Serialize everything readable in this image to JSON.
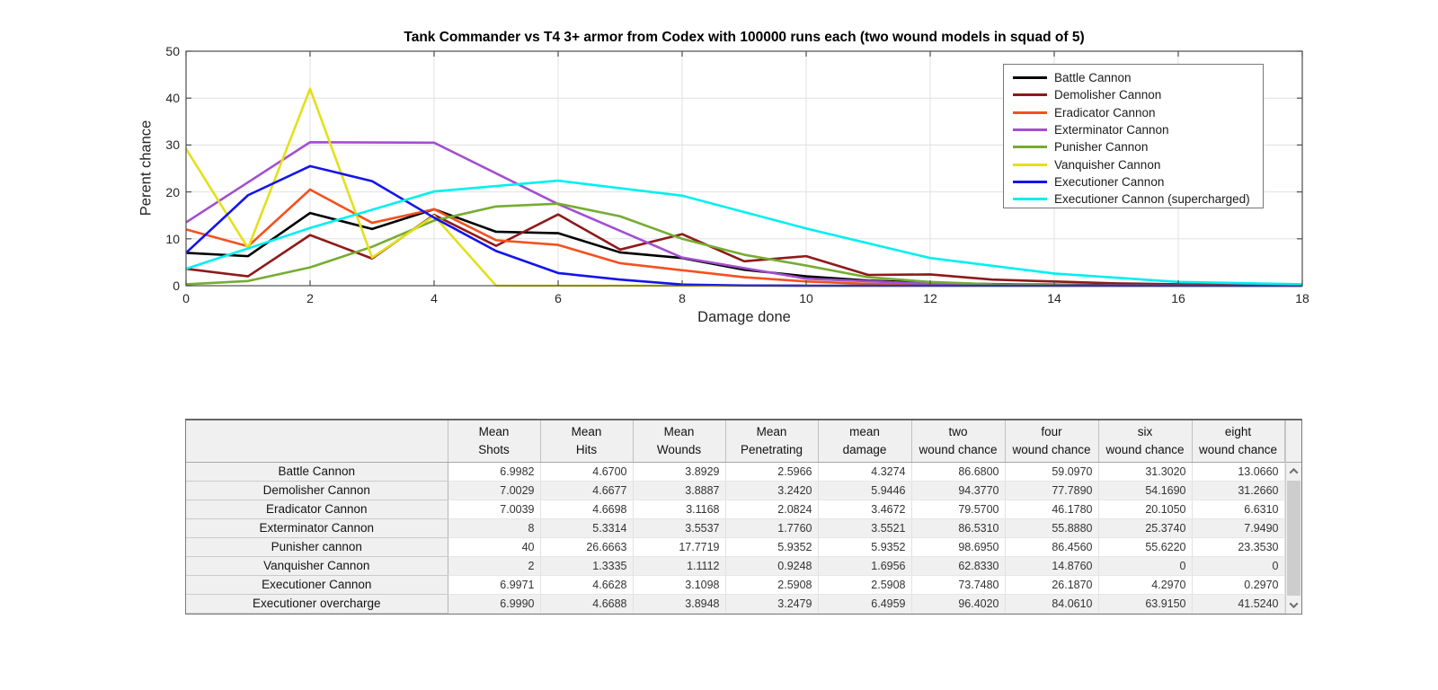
{
  "chart_data": {
    "type": "line",
    "title": "Tank Commander vs T4 3+ armor from Codex with 100000 runs each (two wound models in squad of 5)",
    "xlabel": "Damage done",
    "ylabel": "Perent chance",
    "xlim": [
      0,
      18
    ],
    "ylim": [
      0,
      50
    ],
    "xticks": [
      0,
      2,
      4,
      6,
      8,
      10,
      12,
      14,
      16,
      18
    ],
    "yticks": [
      0,
      10,
      20,
      30,
      40,
      50
    ],
    "grid": true,
    "legend_position": "upper right",
    "colors": {
      "grid": "#e0e0e0",
      "axis": "#4d4d4d",
      "tick_label": "#262626"
    },
    "series": [
      {
        "name": "Battle Cannon",
        "color": "#000000",
        "x": [
          0,
          1,
          2,
          3,
          4,
          5,
          6,
          7,
          8,
          9,
          10,
          11,
          12,
          13,
          14,
          15,
          16,
          17,
          18
        ],
        "y": [
          7.0,
          6.3,
          15.5,
          12.1,
          16.3,
          11.5,
          11.2,
          7.1,
          5.9,
          3.4,
          2.0,
          1.1,
          0.6,
          0.35,
          0.2,
          0.1,
          0.05,
          0.02,
          0
        ]
      },
      {
        "name": "Demolisher Cannon",
        "color": "#8e1a1a",
        "x": [
          0,
          1,
          2,
          3,
          4,
          5,
          6,
          7,
          8,
          9,
          10,
          11,
          12,
          13,
          14,
          15,
          16,
          17,
          18
        ],
        "y": [
          3.6,
          2.0,
          10.8,
          5.8,
          15.1,
          8.5,
          15.2,
          7.7,
          11.0,
          5.2,
          6.3,
          2.3,
          2.4,
          1.3,
          0.9,
          0.5,
          0.3,
          0.15,
          0.1
        ]
      },
      {
        "name": "Eradicator Cannon",
        "color": "#f4511e",
        "x": [
          0,
          1,
          2,
          3,
          4,
          5,
          6,
          7,
          8,
          9,
          10,
          11,
          12,
          13,
          14,
          15,
          16,
          17,
          18
        ],
        "y": [
          12.0,
          8.4,
          20.5,
          13.4,
          16.3,
          9.7,
          8.7,
          4.8,
          3.3,
          1.8,
          0.9,
          0.4,
          0.15,
          0.05,
          0,
          0,
          0,
          0,
          0
        ]
      },
      {
        "name": "Exterminator Cannon",
        "color": "#a24fd0",
        "x": [
          0,
          2,
          4,
          6,
          8,
          10,
          12,
          14,
          16,
          18
        ],
        "y": [
          13.5,
          30.6,
          30.5,
          17.4,
          6.0,
          1.5,
          0.4,
          0.1,
          0,
          0
        ]
      },
      {
        "name": "Punisher Cannon",
        "color": "#76ac32",
        "x": [
          0,
          1,
          2,
          3,
          4,
          5,
          6,
          7,
          8,
          9,
          10,
          11,
          12,
          13,
          14,
          15,
          16,
          17,
          18
        ],
        "y": [
          0.3,
          1.0,
          3.9,
          8.3,
          13.9,
          16.9,
          17.5,
          14.8,
          10.0,
          6.6,
          4.3,
          1.8,
          0.8,
          0.3,
          0.1,
          0,
          0,
          0,
          0
        ]
      },
      {
        "name": "Vanquisher Cannon",
        "color": "#e3e019",
        "x": [
          0,
          1,
          2,
          3,
          4,
          5,
          6,
          7,
          8,
          9,
          10,
          11,
          12,
          13,
          14,
          15,
          16,
          17,
          18
        ],
        "y": [
          29.2,
          8.0,
          42.0,
          6.0,
          14.9,
          0,
          0,
          0,
          0,
          0,
          0,
          0,
          0,
          0,
          0,
          0,
          0,
          0,
          0
        ]
      },
      {
        "name": "Executioner Cannon",
        "color": "#1414eb",
        "x": [
          0,
          1,
          2,
          3,
          4,
          5,
          6,
          7,
          8,
          9,
          10,
          11,
          12,
          13,
          14,
          15,
          16,
          17,
          18
        ],
        "y": [
          7.0,
          19.3,
          25.5,
          22.3,
          14.5,
          7.4,
          2.7,
          1.3,
          0.25,
          0.05,
          0,
          0,
          0,
          0,
          0,
          0,
          0,
          0,
          0
        ]
      },
      {
        "name": "Executioner Cannon (supercharged)",
        "color": "#00eff0",
        "x": [
          0,
          2,
          4,
          6,
          8,
          10,
          12,
          14,
          16,
          18
        ],
        "y": [
          3.6,
          12.3,
          20.1,
          22.4,
          19.2,
          12.2,
          5.9,
          2.6,
          0.8,
          0.3
        ]
      }
    ]
  },
  "table": {
    "columns": [
      {
        "line1": "",
        "line2": ""
      },
      {
        "line1": "Mean",
        "line2": "Shots"
      },
      {
        "line1": "Mean",
        "line2": "Hits"
      },
      {
        "line1": "Mean",
        "line2": "Wounds"
      },
      {
        "line1": "Mean",
        "line2": "Penetrating"
      },
      {
        "line1": "mean",
        "line2": "damage"
      },
      {
        "line1": "two",
        "line2": "wound chance"
      },
      {
        "line1": "four",
        "line2": "wound chance"
      },
      {
        "line1": "six",
        "line2": "wound chance"
      },
      {
        "line1": "eight",
        "line2": "wound chance"
      }
    ],
    "rows": [
      {
        "name": "Battle Cannon",
        "values": [
          "6.9982",
          "4.6700",
          "3.8929",
          "2.5966",
          "4.3274",
          "86.6800",
          "59.0970",
          "31.3020",
          "13.0660"
        ]
      },
      {
        "name": "Demolisher Cannon",
        "values": [
          "7.0029",
          "4.6677",
          "3.8887",
          "3.2420",
          "5.9446",
          "94.3770",
          "77.7890",
          "54.1690",
          "31.2660"
        ]
      },
      {
        "name": "Eradicator Cannon",
        "values": [
          "7.0039",
          "4.6698",
          "3.1168",
          "2.0824",
          "3.4672",
          "79.5700",
          "46.1780",
          "20.1050",
          "6.6310"
        ]
      },
      {
        "name": "Exterminator Cannon",
        "values": [
          "8",
          "5.3314",
          "3.5537",
          "1.7760",
          "3.5521",
          "86.5310",
          "55.8880",
          "25.3740",
          "7.9490"
        ]
      },
      {
        "name": "Punisher cannon",
        "values": [
          "40",
          "26.6663",
          "17.7719",
          "5.9352",
          "5.9352",
          "98.6950",
          "86.4560",
          "55.6220",
          "23.3530"
        ]
      },
      {
        "name": "Vanquisher Cannon",
        "values": [
          "2",
          "1.3335",
          "1.1112",
          "0.9248",
          "1.6956",
          "62.8330",
          "14.8760",
          "0",
          "0"
        ]
      },
      {
        "name": "Executioner Cannon",
        "values": [
          "6.9971",
          "4.6628",
          "3.1098",
          "2.5908",
          "2.5908",
          "73.7480",
          "26.1870",
          "4.2970",
          "0.2970"
        ]
      },
      {
        "name": "Executioner overcharge",
        "values": [
          "6.9990",
          "4.6688",
          "3.8948",
          "3.2479",
          "6.4959",
          "96.4020",
          "84.0610",
          "63.9150",
          "41.5240"
        ]
      }
    ]
  }
}
